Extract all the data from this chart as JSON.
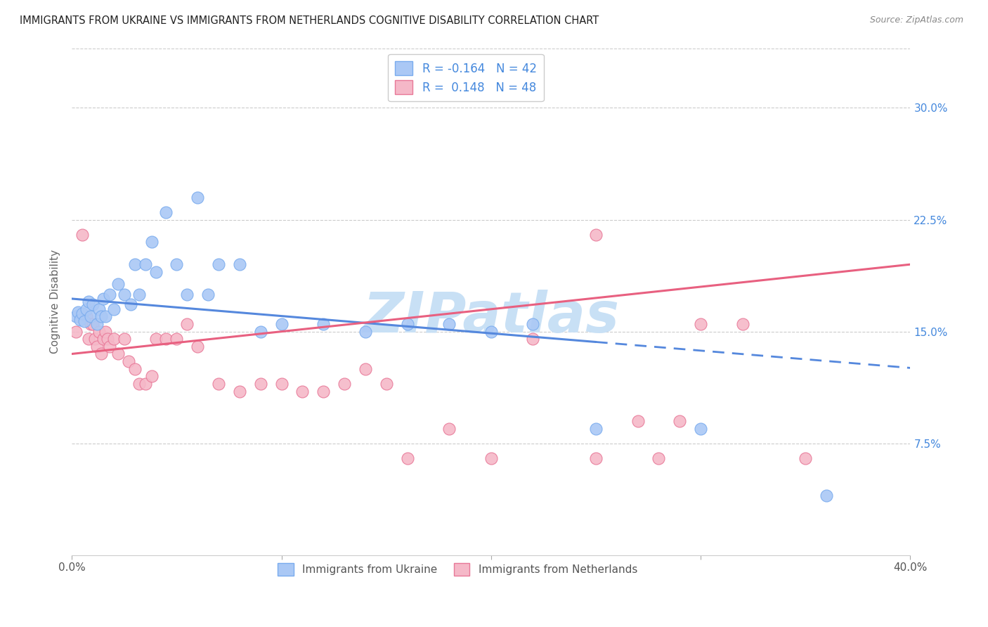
{
  "title": "IMMIGRANTS FROM UKRAINE VS IMMIGRANTS FROM NETHERLANDS COGNITIVE DISABILITY CORRELATION CHART",
  "source": "Source: ZipAtlas.com",
  "ylabel": "Cognitive Disability",
  "yticks": [
    "7.5%",
    "15.0%",
    "22.5%",
    "30.0%"
  ],
  "ytick_vals": [
    0.075,
    0.15,
    0.225,
    0.3
  ],
  "xlim": [
    0.0,
    0.4
  ],
  "ylim": [
    0.0,
    0.34
  ],
  "legend_ukraine_R": "-0.164",
  "legend_ukraine_N": "42",
  "legend_netherlands_R": "0.148",
  "legend_netherlands_N": "48",
  "ukraine_color": "#aac8f5",
  "ukraine_edge": "#7aacee",
  "netherlands_color": "#f5b8c8",
  "netherlands_edge": "#e87898",
  "ukraine_line_color": "#5588dd",
  "netherlands_line_color": "#e86080",
  "ukraine_scatter_x": [
    0.002,
    0.003,
    0.004,
    0.005,
    0.006,
    0.007,
    0.008,
    0.009,
    0.01,
    0.012,
    0.013,
    0.014,
    0.015,
    0.016,
    0.018,
    0.02,
    0.022,
    0.025,
    0.028,
    0.03,
    0.032,
    0.035,
    0.038,
    0.04,
    0.045,
    0.05,
    0.055,
    0.06,
    0.065,
    0.07,
    0.08,
    0.09,
    0.1,
    0.12,
    0.14,
    0.16,
    0.18,
    0.2,
    0.22,
    0.25,
    0.3,
    0.36
  ],
  "ukraine_scatter_y": [
    0.16,
    0.163,
    0.158,
    0.162,
    0.157,
    0.165,
    0.17,
    0.16,
    0.168,
    0.155,
    0.165,
    0.16,
    0.172,
    0.16,
    0.175,
    0.165,
    0.182,
    0.175,
    0.168,
    0.195,
    0.175,
    0.195,
    0.21,
    0.19,
    0.23,
    0.195,
    0.175,
    0.24,
    0.175,
    0.195,
    0.195,
    0.15,
    0.155,
    0.155,
    0.15,
    0.155,
    0.155,
    0.15,
    0.155,
    0.085,
    0.085,
    0.04
  ],
  "netherlands_scatter_x": [
    0.002,
    0.005,
    0.007,
    0.008,
    0.009,
    0.01,
    0.011,
    0.012,
    0.013,
    0.014,
    0.015,
    0.016,
    0.017,
    0.018,
    0.02,
    0.022,
    0.025,
    0.027,
    0.03,
    0.032,
    0.035,
    0.038,
    0.04,
    0.045,
    0.05,
    0.055,
    0.06,
    0.07,
    0.08,
    0.09,
    0.1,
    0.11,
    0.12,
    0.13,
    0.14,
    0.15,
    0.16,
    0.18,
    0.2,
    0.22,
    0.25,
    0.28,
    0.3,
    0.32,
    0.35,
    0.25,
    0.27,
    0.29
  ],
  "netherlands_scatter_y": [
    0.15,
    0.215,
    0.16,
    0.145,
    0.155,
    0.155,
    0.145,
    0.14,
    0.15,
    0.135,
    0.145,
    0.15,
    0.145,
    0.14,
    0.145,
    0.135,
    0.145,
    0.13,
    0.125,
    0.115,
    0.115,
    0.12,
    0.145,
    0.145,
    0.145,
    0.155,
    0.14,
    0.115,
    0.11,
    0.115,
    0.115,
    0.11,
    0.11,
    0.115,
    0.125,
    0.115,
    0.065,
    0.085,
    0.065,
    0.145,
    0.065,
    0.065,
    0.155,
    0.155,
    0.065,
    0.215,
    0.09,
    0.09
  ],
  "background_color": "#ffffff",
  "watermark": "ZIPatlas",
  "watermark_color": "#c8e0f5",
  "ukraine_line_x0": 0.0,
  "ukraine_line_y0": 0.172,
  "ukraine_line_x1": 0.25,
  "ukraine_line_y1": 0.143,
  "netherlands_line_x0": 0.0,
  "netherlands_line_y0": 0.135,
  "netherlands_line_x1": 0.4,
  "netherlands_line_y1": 0.195
}
